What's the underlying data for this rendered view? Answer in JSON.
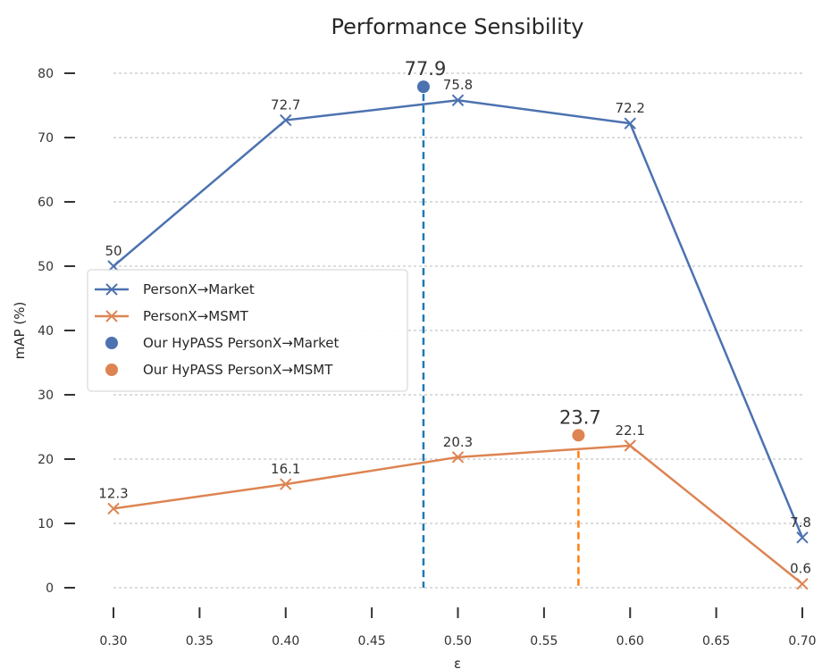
{
  "chart_data": {
    "type": "line",
    "title": "Performance Sensibility",
    "xlabel": "ε",
    "ylabel": "mAP (%)",
    "x": [
      0.3,
      0.4,
      0.5,
      0.6,
      0.7
    ],
    "x_ticks": [
      "0.30",
      "0.35",
      "0.40",
      "0.45",
      "0.50",
      "0.55",
      "0.60",
      "0.65",
      "0.70"
    ],
    "y_ticks": [
      "0",
      "10",
      "20",
      "30",
      "40",
      "50",
      "60",
      "70",
      "80"
    ],
    "xlim": [
      0.3,
      0.7
    ],
    "ylim": [
      0,
      80
    ],
    "grid": "horizontal dashed",
    "legend_position": "center-left",
    "series": [
      {
        "name": "PersonX→Market",
        "color": "#4c72b0",
        "marker": "x",
        "values": [
          50,
          72.7,
          75.8,
          72.2,
          7.8
        ],
        "labels": [
          "50",
          "72.7",
          "75.8",
          "72.2",
          "7.8"
        ]
      },
      {
        "name": "PersonX→MSMT",
        "color": "#dd8452",
        "marker": "x",
        "values": [
          12.3,
          16.1,
          20.3,
          22.1,
          0.6
        ],
        "labels": [
          "12.3",
          "16.1",
          "20.3",
          "22.1",
          "0.6"
        ]
      }
    ],
    "points": [
      {
        "name": "Our HyPASS PersonX→Market",
        "x": 0.48,
        "y": 77.9,
        "label": "77.9",
        "color": "#4c72b0",
        "guide_color": "#1f77b4"
      },
      {
        "name": "Our HyPASS PersonX→MSMT",
        "x": 0.57,
        "y": 23.7,
        "label": "23.7",
        "color": "#dd8452",
        "guide_color": "#ff7f0e"
      }
    ]
  }
}
